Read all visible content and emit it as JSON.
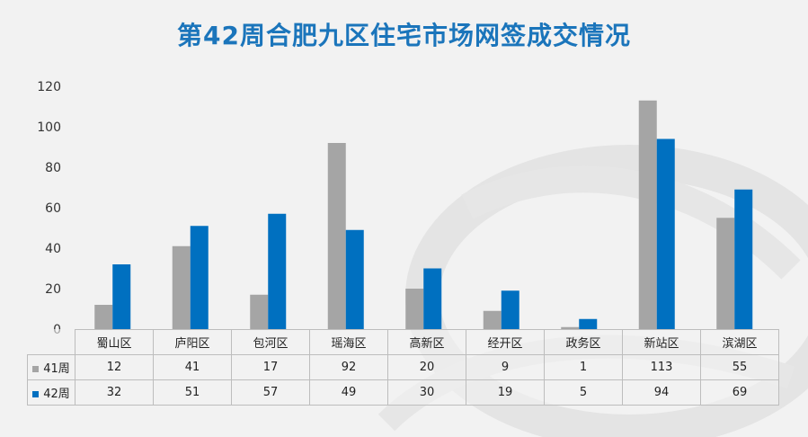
{
  "chart_data": {
    "type": "bar",
    "title": "第42周合肥九区住宅市场网签成交情况",
    "categories": [
      "蜀山区",
      "庐阳区",
      "包河区",
      "瑶海区",
      "高新区",
      "经开区",
      "政务区",
      "新站区",
      "滨湖区"
    ],
    "series": [
      {
        "name": "41周",
        "color": "#a5a5a5",
        "values": [
          12,
          41,
          17,
          92,
          20,
          9,
          1,
          113,
          55
        ]
      },
      {
        "name": "42周",
        "color": "#0070c0",
        "values": [
          32,
          51,
          57,
          49,
          30,
          19,
          5,
          94,
          69
        ]
      }
    ],
    "yticks": [
      "0",
      "20",
      "40",
      "60",
      "80",
      "100",
      "120"
    ],
    "ylim": [
      0,
      120
    ],
    "grid": false,
    "legend": "data-table"
  }
}
